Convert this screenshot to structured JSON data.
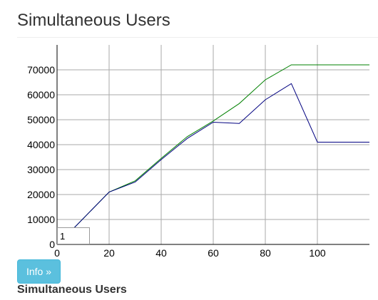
{
  "header": {
    "title": "Simultaneous Users"
  },
  "chart_data": {
    "type": "line",
    "title": "",
    "xlabel": "",
    "ylabel": "",
    "xlim": [
      0,
      120
    ],
    "ylim": [
      0,
      80000
    ],
    "grid": true,
    "legend": "none",
    "x_ticks": [
      0,
      20,
      40,
      60,
      80,
      100
    ],
    "y_ticks": [
      0,
      10000,
      20000,
      30000,
      40000,
      50000,
      60000,
      70000
    ],
    "series": [
      {
        "color": "#008000",
        "x": [
          5,
          20,
          30,
          40,
          50,
          60,
          70,
          80,
          90,
          100,
          110,
          120
        ],
        "y": [
          5000,
          21000,
          25500,
          34500,
          43200,
          49500,
          56500,
          66000,
          72000,
          72000,
          72000,
          72000
        ]
      },
      {
        "color": "#000080",
        "x": [
          5,
          20,
          30,
          40,
          50,
          60,
          70,
          80,
          90,
          100,
          110,
          120
        ],
        "y": [
          5000,
          21000,
          25000,
          34000,
          42500,
          49000,
          48500,
          58000,
          64500,
          41000,
          41000,
          41000
        ]
      }
    ]
  },
  "controls": {
    "stepper_value": "1",
    "info_button_label": "Info »"
  },
  "footer": {
    "section_label": "Simultaneous Users"
  },
  "colors": {
    "grid": "#aaaaaa",
    "axis": "#000000",
    "info_button_bg": "#5bc0de"
  }
}
